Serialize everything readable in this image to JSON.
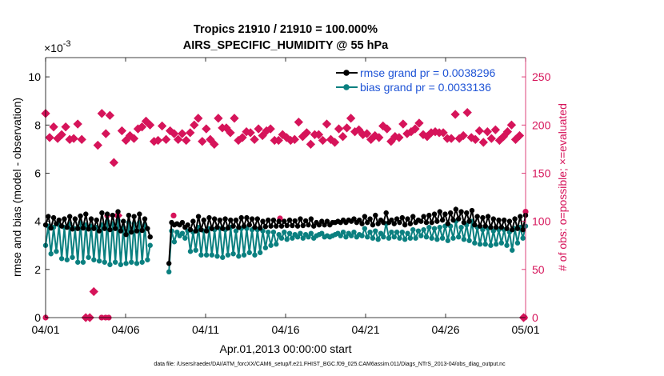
{
  "chart_data": {
    "type": "line",
    "title_line1": "Tropics 21910 / 21910 = 100.000%",
    "title_line2": "AIRS_SPECIFIC_HUMIDITY @ 55 hPa",
    "xlabel": "Apr.01,2013 00:00:00 start",
    "ylabel_left": "rmse and bias (model - observation)",
    "ylabel_right": "# of obs: o=possible; ×=evaluated",
    "exponent_label": "×10",
    "exponent_power": "-3",
    "footer": "data file: /Users/raeder/DAI/ATM_forcXX/CAM6_setup/f.e21.FHIST_BGC.f09_025.CAM6assim.011/Diags_NTrS_2013-04/obs_diag_output.nc",
    "x_ticks": [
      {
        "day": 0,
        "label": "04/01"
      },
      {
        "day": 5,
        "label": "04/06"
      },
      {
        "day": 10,
        "label": "04/11"
      },
      {
        "day": 15,
        "label": "04/16"
      },
      {
        "day": 20,
        "label": "04/21"
      },
      {
        "day": 25,
        "label": "04/26"
      },
      {
        "day": 30,
        "label": "05/01"
      }
    ],
    "xlim": [
      0,
      30
    ],
    "ylim_left": [
      0,
      10.8
    ],
    "ylim_right": [
      0,
      270
    ],
    "y_ticks_left": [
      "0",
      "2",
      "4",
      "6",
      "8",
      "10"
    ],
    "y_ticks_right": [
      "0",
      "50",
      "100",
      "150",
      "200",
      "250"
    ],
    "colors": {
      "rmse": "#000000",
      "bias": "#0b8080",
      "obs": "#d6145a",
      "legend_text": "#1f54d6"
    },
    "series": [
      {
        "name": "rmse grand pr = 0.0038296",
        "key": "rmse",
        "values": [
          3.85,
          4.2,
          3.72,
          4.15,
          3.9,
          4.05,
          3.8,
          4.1,
          3.75,
          4.2,
          3.68,
          4.1,
          3.7,
          4.22,
          3.72,
          4.3,
          3.68,
          4.1,
          3.7,
          4.05,
          3.6,
          4.35,
          3.7,
          4.3,
          3.65,
          4.25,
          3.7,
          4.4,
          3.6,
          4.0,
          3.45,
          4.25,
          3.55,
          4.2,
          3.6,
          4.3,
          3.62,
          4.1,
          3.7,
          3.35,
          null,
          null,
          null,
          null,
          null,
          null,
          2.25,
          3.95,
          3.85,
          3.9,
          3.85,
          3.95,
          3.75,
          3.85,
          3.65,
          4.0,
          3.6,
          4.2,
          3.65,
          4.05,
          3.6,
          4.15,
          3.7,
          4.1,
          3.75,
          4.05,
          3.7,
          4.1,
          3.72,
          4.05,
          3.8,
          4.05,
          3.75,
          4.15,
          3.8,
          4.15,
          3.85,
          4.1,
          3.75,
          4.1,
          3.72,
          4.0,
          3.78,
          4.05,
          3.8,
          4.05,
          3.8,
          4.0,
          3.8,
          4.0,
          3.82,
          4.05,
          3.82,
          4.02,
          3.8,
          4.1,
          3.82,
          4.02,
          3.85,
          4.1,
          3.8,
          3.95,
          3.85,
          4.0,
          3.85,
          4.0,
          3.85,
          3.95,
          3.95,
          4.0,
          3.95,
          4.05,
          3.95,
          4.05,
          4.0,
          4.1,
          3.95,
          4.05,
          3.9,
          4.2,
          3.95,
          4.1,
          3.85,
          4.25,
          3.9,
          4.05,
          3.95,
          4.35,
          3.95,
          4.05,
          3.9,
          4.1,
          3.95,
          4.15,
          3.85,
          4.1,
          3.9,
          4.2,
          3.95,
          4.05,
          4.0,
          4.2,
          3.95,
          4.25,
          3.95,
          4.3,
          4.0,
          4.4,
          4.05,
          4.3,
          3.9,
          4.35,
          4.05,
          4.5,
          4.1,
          4.4,
          3.95,
          4.35,
          4.0,
          4.45,
          3.85,
          4.2,
          3.8,
          4.15,
          3.8,
          4.2,
          3.75,
          4.1,
          3.75,
          4.05,
          3.75,
          4.05,
          3.7,
          4.0,
          3.65,
          4.1,
          3.7,
          4.2,
          3.65,
          4.25
        ]
      },
      {
        "name": "bias grand pr = 0.0033136",
        "key": "bias",
        "values": [
          3.0,
          3.8,
          2.65,
          3.75,
          2.75,
          3.85,
          2.45,
          3.75,
          2.4,
          3.9,
          2.5,
          3.7,
          2.3,
          3.95,
          2.3,
          3.85,
          2.5,
          3.8,
          2.4,
          3.75,
          2.35,
          3.85,
          2.3,
          4.0,
          2.2,
          3.9,
          2.3,
          4.05,
          2.2,
          3.75,
          2.25,
          3.95,
          2.3,
          3.9,
          2.25,
          3.95,
          2.3,
          3.85,
          2.4,
          3.0,
          null,
          null,
          null,
          null,
          null,
          null,
          1.9,
          3.6,
          3.15,
          3.55,
          3.4,
          3.5,
          3.3,
          3.6,
          2.75,
          3.55,
          2.8,
          3.75,
          2.6,
          3.6,
          2.6,
          3.7,
          2.6,
          3.65,
          2.55,
          3.7,
          2.5,
          3.65,
          2.6,
          3.75,
          2.65,
          3.6,
          2.55,
          3.7,
          2.6,
          3.7,
          2.7,
          3.65,
          2.6,
          3.65,
          2.7,
          3.6,
          2.9,
          3.55,
          3.0,
          3.55,
          3.05,
          3.45,
          3.3,
          3.55,
          3.25,
          3.5,
          3.3,
          3.45,
          3.35,
          3.5,
          3.3,
          3.45,
          3.35,
          3.5,
          3.3,
          3.4,
          3.45,
          3.5,
          3.35,
          3.4,
          3.35,
          3.4,
          3.45,
          3.5,
          3.4,
          3.55,
          3.35,
          3.5,
          3.4,
          3.55,
          3.35,
          3.45,
          3.4,
          3.7,
          3.35,
          3.55,
          3.3,
          3.6,
          3.25,
          3.5,
          3.35,
          3.9,
          3.3,
          3.55,
          3.35,
          3.55,
          3.3,
          3.55,
          3.25,
          3.5,
          3.3,
          3.65,
          3.3,
          3.6,
          3.4,
          3.65,
          3.35,
          3.75,
          3.3,
          3.7,
          3.25,
          3.75,
          3.3,
          3.8,
          3.2,
          3.8,
          3.3,
          4.0,
          3.35,
          3.75,
          3.25,
          3.85,
          3.2,
          4.0,
          3.1,
          3.75,
          3.05,
          3.65,
          3.05,
          3.7,
          3.0,
          3.6,
          3.05,
          3.65,
          3.1,
          3.65,
          3.0,
          3.55,
          2.8,
          3.7,
          3.1,
          3.75,
          3.3,
          3.8
        ]
      }
    ],
    "obs_evaluated": [
      212,
      184,
      187,
      190,
      198,
      203,
      186,
      184,
      190,
      217,
      198,
      188,
      185,
      207,
      186,
      185,
      201,
      193,
      185,
      186,
      0,
      0,
      0,
      0,
      27,
      185,
      179,
      183,
      212,
      181,
      191,
      200,
      210,
      203,
      161,
      189,
      106,
      187,
      194,
      189,
      184,
      190,
      189,
      198,
      186,
      192,
      196,
      183,
      198,
      188,
      204,
      182,
      200,
      191,
      183,
      185,
      184,
      193,
      199,
      187,
      185,
      186,
      194,
      214,
      191,
      186,
      185,
      198,
      191,
      189,
      184,
      196,
      192,
      213,
      200,
      182,
      207,
      185,
      183,
      189,
      196,
      188,
      185,
      203,
      180,
      192,
      207,
      191,
      197,
      193,
      197,
      186,
      192,
      188,
      207,
      194,
      184,
      192,
      187,
      185,
      193,
      202,
      192,
      183,
      185,
      188,
      196,
      189,
      189,
      190,
      194,
      210,
      196,
      188,
      184,
      212,
      184,
      179,
      190,
      180,
      187,
      199,
      184,
      189,
      185,
      190,
      203,
      186,
      188,
      207,
      192,
      188,
      180,
      179,
      190,
      186,
      190,
      187,
      184,
      188,
      201,
      183,
      185,
      184,
      182,
      186,
      196,
      203,
      188,
      192,
      197,
      186,
      207,
      189,
      193,
      188,
      195,
      198,
      190,
      204,
      191,
      205,
      185,
      184,
      189,
      185,
      187,
      193,
      199,
      187,
      196,
      186,
      183,
      190,
      188,
      196,
      187,
      189,
      201,
      192,
      191,
      190,
      193,
      195,
      196,
      199,
      202,
      208,
      190,
      184,
      188,
      183,
      192,
      212,
      193,
      185,
      192,
      188,
      192,
      206,
      186,
      191,
      186,
      189,
      211,
      196,
      186,
      190,
      189,
      192,
      213,
      190,
      187,
      192,
      185,
      191,
      194,
      195,
      182,
      187,
      193,
      191,
      186,
      188,
      195,
      186,
      184,
      190,
      188,
      196,
      193,
      185,
      200,
      214,
      185,
      187,
      189,
      192,
      0,
      0
    ],
    "obs_possible_notes": [
      {
        "day": 0.0,
        "value": 0
      },
      {
        "day": 3.5,
        "value": 0
      },
      {
        "day": 3.75,
        "value": 0
      },
      {
        "day": 3.95,
        "value": 0
      },
      {
        "day": 3.85,
        "value": 106
      },
      {
        "day": 8.0,
        "value": 106
      },
      {
        "day": 14.65,
        "value": 103
      },
      {
        "day": 29.95,
        "value": 0
      },
      {
        "day": 30.0,
        "value": 110
      }
    ]
  }
}
